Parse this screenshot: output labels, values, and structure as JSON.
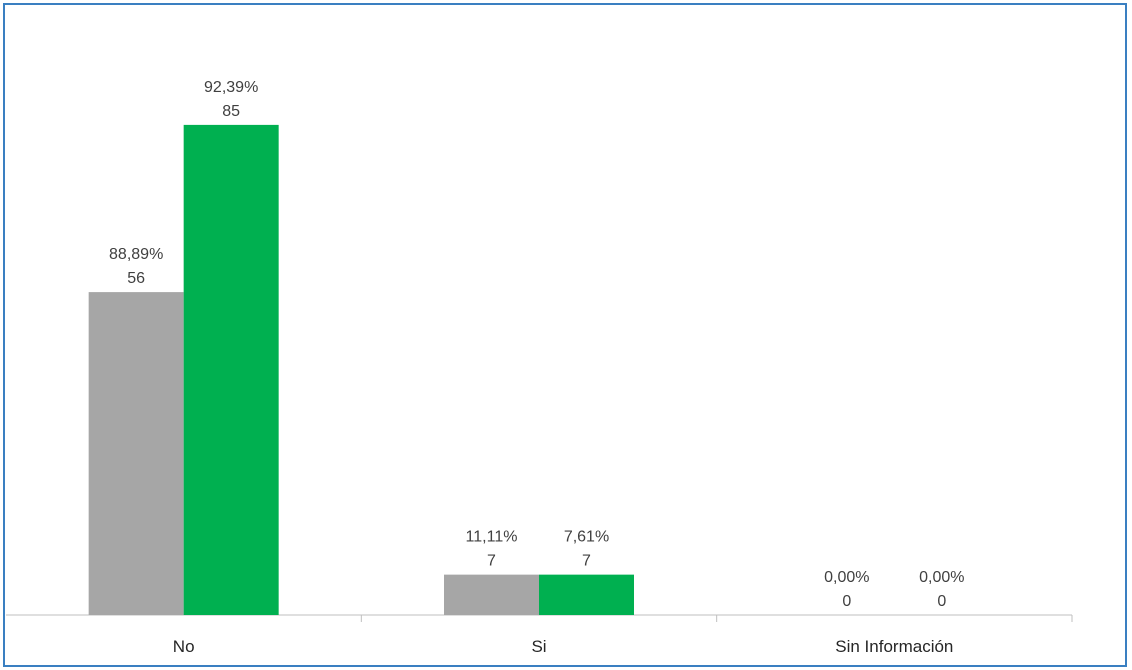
{
  "chart_data": {
    "type": "bar",
    "title": "",
    "xlabel": "",
    "ylabel": "",
    "categories": [
      "No",
      "Si",
      "Sin Información"
    ],
    "series": [
      {
        "color": "#a6a6a6",
        "values": [
          56,
          7,
          0
        ],
        "percent_labels": [
          "88,89%",
          "11,11%",
          "0,00%"
        ],
        "value_labels": [
          "56",
          "7",
          "0"
        ]
      },
      {
        "color": "#00b050",
        "values": [
          85,
          7,
          0
        ],
        "percent_labels": [
          "92,39%",
          "7,61%",
          "0,00%"
        ],
        "value_labels": [
          "85",
          "7",
          "0"
        ]
      }
    ],
    "ylim": [
      0,
      100
    ],
    "grid": false,
    "legend": "none"
  }
}
